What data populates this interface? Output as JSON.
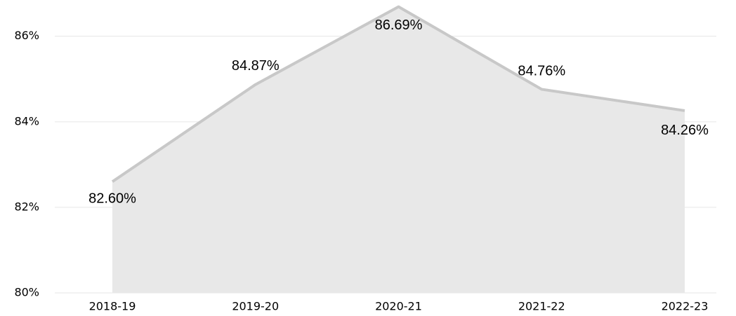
{
  "chart_data": {
    "type": "area",
    "categories": [
      "2018-19",
      "2019-20",
      "2020-21",
      "2021-22",
      "2022-23"
    ],
    "values": [
      82.6,
      84.87,
      86.69,
      84.76,
      84.26
    ],
    "value_labels": [
      "82.60%",
      "84.87%",
      "86.69%",
      "84.76%",
      "84.26%"
    ],
    "color": "#c8c8c8",
    "fill": "#e8e8e8",
    "ylim": [
      80,
      86.7
    ],
    "yticks": [
      {
        "value": 80,
        "label": "80%"
      },
      {
        "value": 82,
        "label": "82%"
      },
      {
        "value": 84,
        "label": "84%"
      },
      {
        "value": 86,
        "label": "86%"
      }
    ],
    "grid": true
  }
}
